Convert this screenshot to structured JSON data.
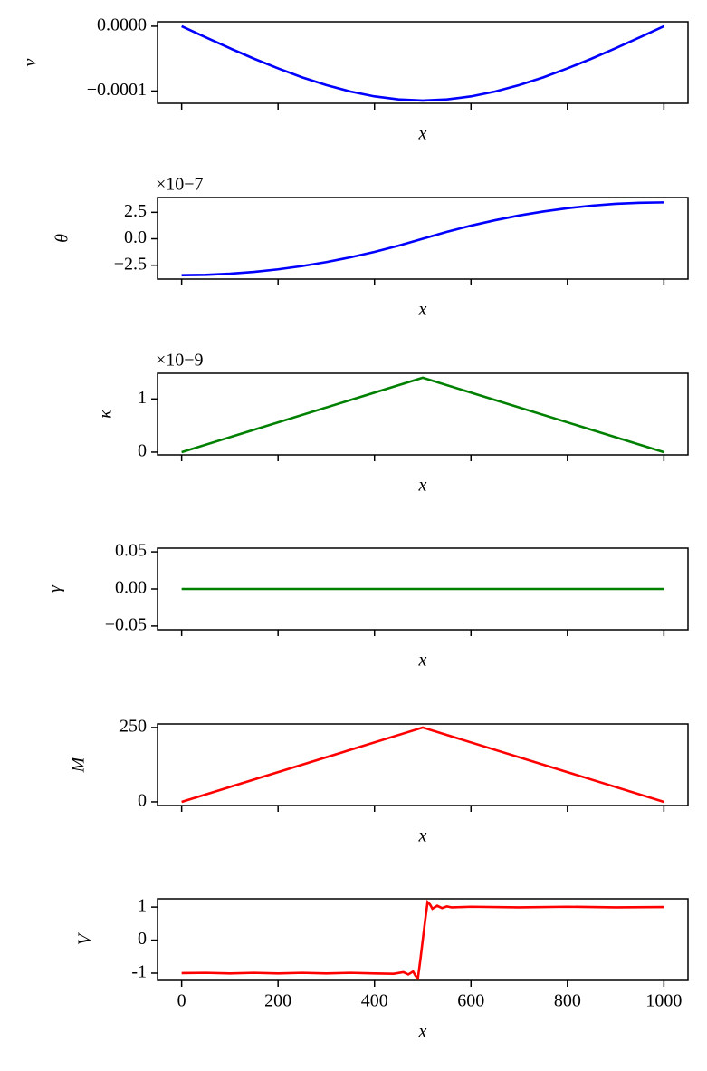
{
  "chart_data": [
    {
      "type": "line",
      "xlabel": "x",
      "ylabel": "v",
      "color": "#0000ff",
      "xticklabels": false,
      "x": [
        0,
        50,
        100,
        150,
        200,
        250,
        300,
        350,
        400,
        450,
        500,
        550,
        600,
        650,
        700,
        750,
        800,
        850,
        900,
        950,
        1000
      ],
      "values": [
        0,
        -1.71e-05,
        -3.4e-05,
        -5.01e-05,
        -6.51e-05,
        -7.89e-05,
        -9.08e-05,
        -0.0001008,
        -0.0001083,
        -0.000113,
        -0.0001147,
        -0.000113,
        -0.0001083,
        -0.0001008,
        -9.08e-05,
        -7.89e-05,
        -6.51e-05,
        -5.01e-05,
        -3.4e-05,
        -1.71e-05,
        0
      ],
      "xlim": [
        -50,
        1050
      ],
      "ylim": [
        -0.000119,
        6.9e-06
      ],
      "xticks": [
        0,
        200,
        400,
        600,
        800,
        1000
      ],
      "yticks": [
        {
          "value": 0,
          "label": "0.0000"
        },
        {
          "value": -0.0001,
          "label": "−0.0001"
        }
      ]
    },
    {
      "type": "line",
      "xlabel": "x",
      "ylabel": "θ",
      "color": "#0000ff",
      "xticklabels": false,
      "offset_text": "×10−7",
      "x": [
        0,
        50,
        100,
        150,
        200,
        250,
        300,
        350,
        400,
        450,
        500,
        550,
        600,
        650,
        700,
        750,
        800,
        850,
        900,
        950,
        1000
      ],
      "values": [
        -3.44,
        -3.406,
        -3.302,
        -3.13,
        -2.89,
        -2.58,
        -2.202,
        -1.754,
        -1.238,
        -0.654,
        0,
        0.654,
        1.238,
        1.754,
        2.202,
        2.58,
        2.89,
        3.13,
        3.302,
        3.406,
        3.44
      ],
      "xlim": [
        -50,
        1050
      ],
      "ylim": [
        -3.81,
        3.9
      ],
      "xticks": [
        0,
        200,
        400,
        600,
        800,
        1000
      ],
      "yticks": [
        {
          "value": 2.5,
          "label": "2.5"
        },
        {
          "value": 0,
          "label": "0.0"
        },
        {
          "value": -2.5,
          "label": "−2.5"
        }
      ]
    },
    {
      "type": "line",
      "xlabel": "x",
      "ylabel": "κ",
      "color": "#008000",
      "xticklabels": false,
      "offset_text": "×10−9",
      "x": [
        0,
        500,
        1000
      ],
      "values": [
        0,
        1.4,
        0
      ],
      "xlim": [
        -50,
        1050
      ],
      "ylim": [
        -0.052,
        1.483
      ],
      "xticks": [
        0,
        200,
        400,
        600,
        800,
        1000
      ],
      "yticks": [
        1,
        0
      ]
    },
    {
      "type": "line",
      "xlabel": "x",
      "ylabel": "γ",
      "color": "#008000",
      "xticklabels": false,
      "x": [
        0,
        1000
      ],
      "values": [
        0,
        0
      ],
      "xlim": [
        -50,
        1050
      ],
      "ylim": [
        -0.055,
        0.055
      ],
      "xticks": [
        0,
        200,
        400,
        600,
        800,
        1000
      ],
      "yticks": [
        {
          "value": 0.05,
          "label": "0.05"
        },
        {
          "value": 0,
          "label": "0.00"
        },
        {
          "value": -0.05,
          "label": "−0.05"
        }
      ]
    },
    {
      "type": "line",
      "xlabel": "x",
      "ylabel": "M",
      "color": "#ff0000",
      "xticklabels": false,
      "x": [
        0,
        500,
        1000
      ],
      "values": [
        0,
        250,
        0
      ],
      "xlim": [
        -50,
        1050
      ],
      "ylim": [
        -12.3,
        262
      ],
      "xticks": [
        0,
        200,
        400,
        600,
        800,
        1000
      ],
      "yticks": [
        250,
        0
      ]
    },
    {
      "type": "line",
      "xlabel": "x",
      "ylabel": "V",
      "color": "#ff0000",
      "xticklabels": true,
      "x": [
        0,
        50,
        100,
        150,
        200,
        250,
        300,
        350,
        400,
        440,
        460,
        470,
        480,
        485,
        490,
        495,
        500,
        505,
        510,
        515,
        520,
        530,
        540,
        550,
        560,
        600,
        700,
        800,
        900,
        1000
      ],
      "values": [
        -1,
        -0.99,
        -1.01,
        -0.99,
        -1.01,
        -0.99,
        -1.01,
        -0.99,
        -1.01,
        -1.02,
        -0.97,
        -1.04,
        -0.95,
        -1.08,
        -1.15,
        -0.6,
        0,
        0.6,
        1.15,
        1.08,
        0.95,
        1.04,
        0.97,
        1.02,
        0.99,
        1.01,
        0.99,
        1.01,
        0.99,
        1
      ],
      "xlim": [
        -50,
        1050
      ],
      "ylim": [
        -1.22,
        1.25
      ],
      "xticks": [
        0,
        200,
        400,
        600,
        800,
        1000
      ],
      "yticks": [
        1,
        0,
        -1
      ]
    }
  ]
}
